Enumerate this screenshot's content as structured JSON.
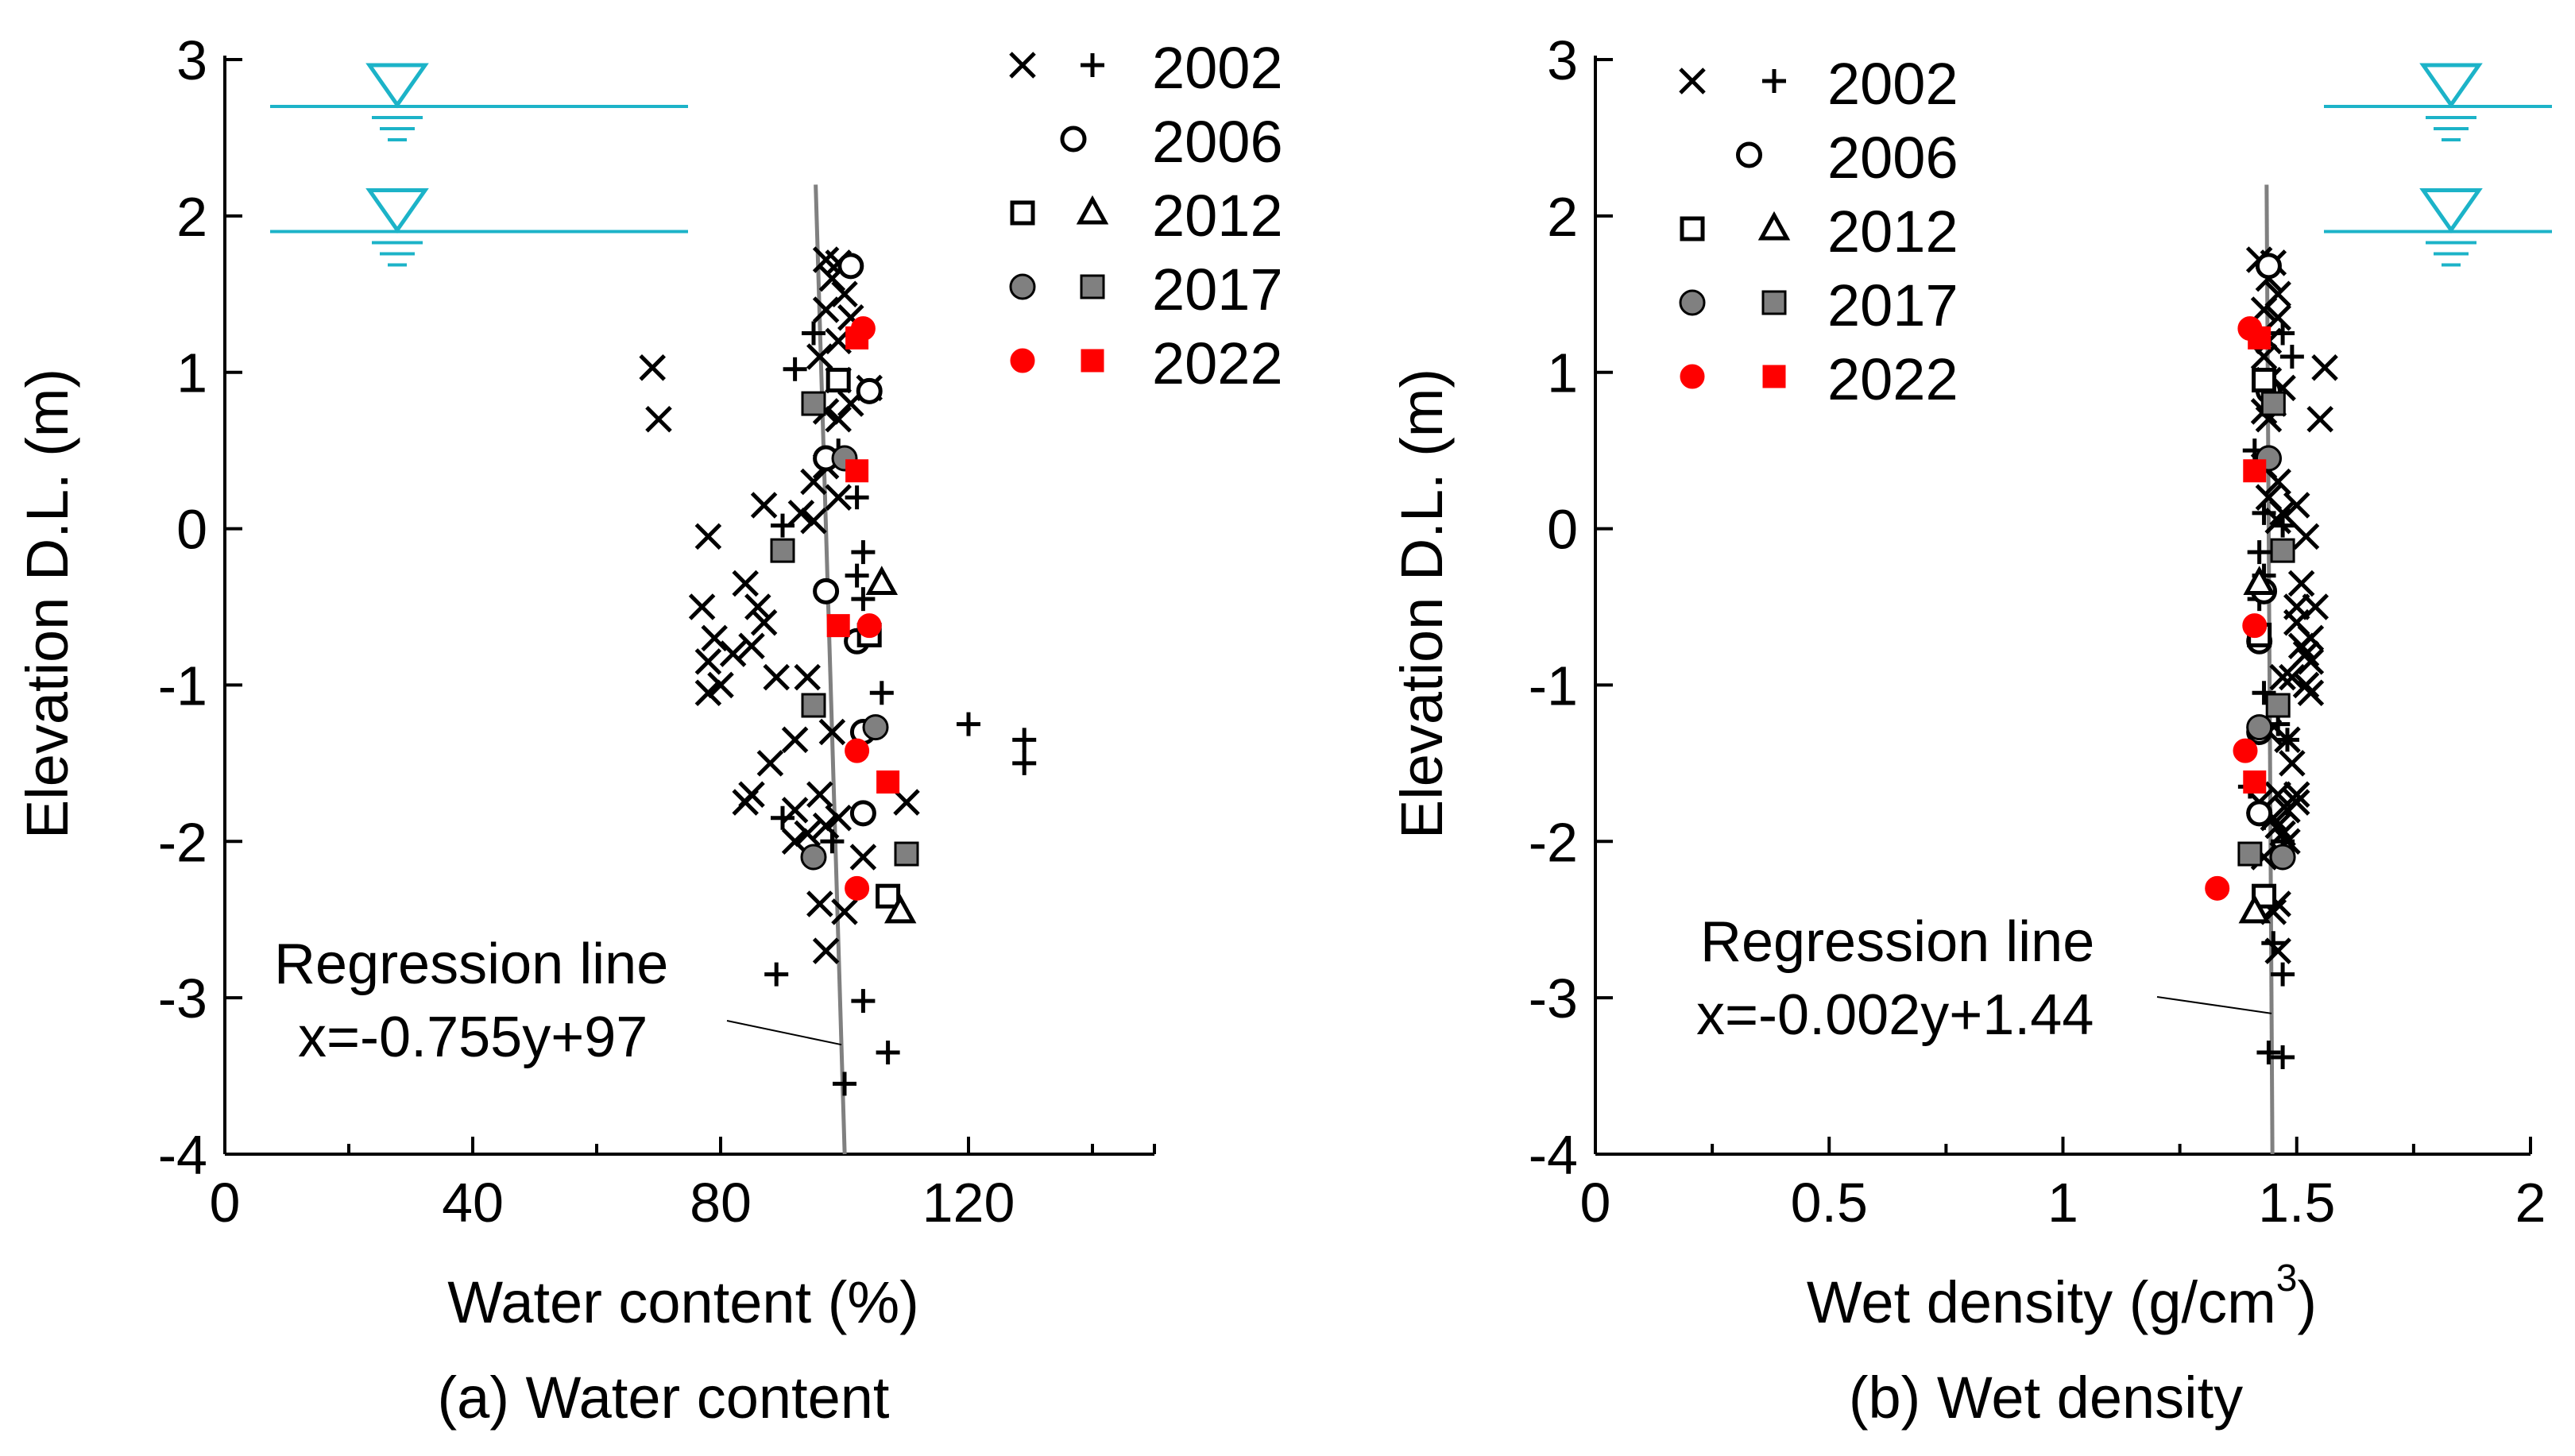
{
  "chart_data": [
    {
      "panel": "a",
      "type": "scatter",
      "caption": "(a) Water content",
      "xlabel": "Water content (%)",
      "ylabel": "Elevation D.L. (m)",
      "xlim": [
        0,
        150
      ],
      "ylim": [
        -4,
        3
      ],
      "xticks": [
        0,
        40,
        80,
        120
      ],
      "xticks_minor": [
        20,
        60,
        100,
        140
      ],
      "yticks": [
        3,
        2,
        1,
        0,
        -1,
        -2,
        -3,
        -4
      ],
      "water_levels": [
        2.7,
        1.9
      ],
      "regression": {
        "label": "Regression line",
        "equation": "x=-0.755y+97",
        "slope": -0.755,
        "intercept": 97,
        "y_range": [
          -4,
          2.2
        ]
      },
      "series": [
        {
          "name": "2002",
          "marker": "x",
          "color": "#000000",
          "points": [
            [
              69,
              1.03
            ],
            [
              70,
              0.7
            ],
            [
              97,
              1.72
            ],
            [
              99,
              1.7
            ],
            [
              98,
              1.6
            ],
            [
              100,
              1.5
            ],
            [
              97,
              1.4
            ],
            [
              101,
              1.35
            ],
            [
              99,
              1.2
            ],
            [
              96,
              1.1
            ],
            [
              99,
              0.95
            ],
            [
              104,
              0.9
            ],
            [
              101,
              0.8
            ],
            [
              97,
              0.75
            ],
            [
              99,
              0.7
            ],
            [
              97,
              0.4
            ],
            [
              95,
              0.3
            ],
            [
              99,
              0.2
            ],
            [
              87,
              0.15
            ],
            [
              93,
              0.1
            ],
            [
              95,
              0.05
            ],
            [
              78,
              -0.05
            ],
            [
              84,
              -0.35
            ],
            [
              86,
              -0.5
            ],
            [
              77,
              -0.5
            ],
            [
              87,
              -0.6
            ],
            [
              85,
              -0.75
            ],
            [
              79,
              -0.7
            ],
            [
              82,
              -0.8
            ],
            [
              78,
              -0.85
            ],
            [
              80,
              -1.0
            ],
            [
              78,
              -1.05
            ],
            [
              89,
              -0.95
            ],
            [
              94,
              -0.95
            ],
            [
              92,
              -1.35
            ],
            [
              88,
              -1.5
            ],
            [
              96,
              -1.7
            ],
            [
              85,
              -1.7
            ],
            [
              84,
              -1.75
            ],
            [
              110,
              -1.75
            ],
            [
              92,
              -1.8
            ],
            [
              97,
              -1.9
            ],
            [
              94,
              -1.95
            ],
            [
              92,
              -2.0
            ],
            [
              99,
              -1.85
            ],
            [
              103,
              -2.1
            ],
            [
              96,
              -2.4
            ],
            [
              100,
              -2.45
            ],
            [
              97,
              -2.7
            ],
            [
              98,
              -1.3
            ]
          ]
        },
        {
          "name": "2002",
          "marker": "+",
          "color": "#000000",
          "points": [
            [
              95,
              1.25
            ],
            [
              92,
              1.02
            ],
            [
              99,
              0.5
            ],
            [
              102,
              0.2
            ],
            [
              90,
              0.02
            ],
            [
              103,
              -0.15
            ],
            [
              102,
              -0.3
            ],
            [
              103,
              -0.45
            ],
            [
              106,
              -1.05
            ],
            [
              120,
              -1.25
            ],
            [
              129,
              -1.35
            ],
            [
              129,
              -1.5
            ],
            [
              90,
              -1.85
            ],
            [
              98,
              -2.0
            ],
            [
              89,
              -2.85
            ],
            [
              103,
              -3.02
            ],
            [
              107,
              -3.35
            ],
            [
              100,
              -3.55
            ]
          ]
        },
        {
          "name": "2006",
          "marker": "circle-open",
          "color": "#000000",
          "points": [
            [
              101,
              1.68
            ],
            [
              104,
              0.88
            ],
            [
              97,
              0.45
            ],
            [
              97,
              -0.4
            ],
            [
              102,
              -0.72
            ],
            [
              103,
              -1.3
            ],
            [
              103,
              -1.82
            ]
          ]
        },
        {
          "name": "2012",
          "marker": "square-open",
          "color": "#000000",
          "points": [
            [
              99,
              0.95
            ],
            [
              104,
              -0.68
            ],
            [
              107,
              -2.35
            ]
          ]
        },
        {
          "name": "2012",
          "marker": "triangle-open",
          "color": "#000000",
          "points": [
            [
              106,
              -0.35
            ],
            [
              109,
              -2.45
            ]
          ]
        },
        {
          "name": "2017",
          "marker": "circle-filled",
          "color": "#808080",
          "points": [
            [
              100,
              0.45
            ],
            [
              105,
              -1.27
            ],
            [
              95,
              -2.1
            ]
          ]
        },
        {
          "name": "2017",
          "marker": "square-filled",
          "color": "#808080",
          "points": [
            [
              95,
              0.8
            ],
            [
              90,
              -0.14
            ],
            [
              95,
              -1.13
            ],
            [
              110,
              -2.08
            ]
          ]
        },
        {
          "name": "2022",
          "marker": "circle-filled",
          "color": "#ff0000",
          "points": [
            [
              103,
              1.28
            ],
            [
              104,
              -0.62
            ],
            [
              102,
              -1.42
            ],
            [
              102,
              -2.3
            ]
          ]
        },
        {
          "name": "2022",
          "marker": "square-filled",
          "color": "#ff0000",
          "points": [
            [
              102,
              1.22
            ],
            [
              102,
              0.37
            ],
            [
              99,
              -0.62
            ],
            [
              107,
              -1.62
            ]
          ]
        }
      ],
      "legend": [
        {
          "label": "2002",
          "markers": [
            "x",
            "+"
          ],
          "colors": [
            "#000000",
            "#000000"
          ]
        },
        {
          "label": "2006",
          "markers": [
            "circle-open"
          ],
          "colors": [
            "#000000"
          ]
        },
        {
          "label": "2012",
          "markers": [
            "square-open",
            "triangle-open"
          ],
          "colors": [
            "#000000",
            "#000000"
          ]
        },
        {
          "label": "2017",
          "markers": [
            "circle-filled",
            "square-filled"
          ],
          "colors": [
            "#808080",
            "#808080"
          ]
        },
        {
          "label": "2022",
          "markers": [
            "circle-filled",
            "square-filled"
          ],
          "colors": [
            "#ff0000",
            "#ff0000"
          ]
        }
      ]
    },
    {
      "panel": "b",
      "type": "scatter",
      "caption": "(b) Wet density",
      "xlabel_main": "Wet density (g/cm",
      "xlabel_sup": "3",
      "xlabel_end": ")",
      "ylabel": "Elevation D.L. (m)",
      "xlim": [
        0,
        2
      ],
      "ylim": [
        -4,
        3
      ],
      "xticks": [
        "0",
        "0.5",
        "1",
        "1.5",
        "2"
      ],
      "xticks_minor": [
        0.25,
        0.75,
        1.25,
        1.75
      ],
      "yticks": [
        3,
        2,
        1,
        0,
        -1,
        -2,
        -3,
        -4
      ],
      "water_levels": [
        2.7,
        1.9
      ],
      "regression": {
        "label": "Regression line",
        "equation": "x=-0.002y+1.44",
        "slope": -0.002,
        "intercept": 1.44,
        "y_range": [
          -4,
          2.2
        ]
      },
      "series": [
        {
          "name": "2002",
          "marker": "x",
          "color": "#000000",
          "points": [
            [
              1.56,
              1.03
            ],
            [
              1.55,
              0.7
            ],
            [
              1.42,
              1.72
            ],
            [
              1.45,
              1.7
            ],
            [
              1.44,
              1.6
            ],
            [
              1.46,
              1.5
            ],
            [
              1.43,
              1.4
            ],
            [
              1.46,
              1.35
            ],
            [
              1.44,
              1.2
            ],
            [
              1.43,
              1.1
            ],
            [
              1.44,
              0.95
            ],
            [
              1.47,
              0.9
            ],
            [
              1.45,
              0.8
            ],
            [
              1.43,
              0.75
            ],
            [
              1.44,
              0.7
            ],
            [
              1.43,
              0.4
            ],
            [
              1.46,
              0.3
            ],
            [
              1.44,
              0.2
            ],
            [
              1.5,
              0.15
            ],
            [
              1.47,
              0.1
            ],
            [
              1.46,
              0.05
            ],
            [
              1.52,
              -0.05
            ],
            [
              1.51,
              -0.35
            ],
            [
              1.5,
              -0.5
            ],
            [
              1.54,
              -0.5
            ],
            [
              1.5,
              -0.6
            ],
            [
              1.51,
              -0.75
            ],
            [
              1.53,
              -0.7
            ],
            [
              1.52,
              -0.8
            ],
            [
              1.53,
              -0.85
            ],
            [
              1.52,
              -1.0
            ],
            [
              1.53,
              -1.05
            ],
            [
              1.49,
              -0.95
            ],
            [
              1.47,
              -0.95
            ],
            [
              1.48,
              -1.35
            ],
            [
              1.49,
              -1.5
            ],
            [
              1.46,
              -1.7
            ],
            [
              1.5,
              -1.7
            ],
            [
              1.5,
              -1.75
            ],
            [
              1.42,
              -1.75
            ],
            [
              1.48,
              -1.8
            ],
            [
              1.46,
              -1.9
            ],
            [
              1.47,
              -1.95
            ],
            [
              1.48,
              -2.0
            ],
            [
              1.45,
              -1.85
            ],
            [
              1.43,
              -2.1
            ],
            [
              1.46,
              -2.4
            ],
            [
              1.45,
              -2.45
            ],
            [
              1.46,
              -2.7
            ],
            [
              1.44,
              -1.3
            ]
          ]
        },
        {
          "name": "2002",
          "marker": "+",
          "color": "#000000",
          "points": [
            [
              1.47,
              1.25
            ],
            [
              1.49,
              1.1
            ],
            [
              1.41,
              0.5
            ],
            [
              1.43,
              0.1
            ],
            [
              1.47,
              0.02
            ],
            [
              1.42,
              -0.15
            ],
            [
              1.43,
              -0.3
            ],
            [
              1.42,
              -0.45
            ],
            [
              1.43,
              -1.05
            ],
            [
              1.46,
              -1.25
            ],
            [
              1.48,
              -1.35
            ],
            [
              1.4,
              -1.65
            ],
            [
              1.43,
              -1.85
            ],
            [
              1.47,
              -2.0
            ],
            [
              1.47,
              -2.85
            ],
            [
              1.45,
              -2.65
            ],
            [
              1.44,
              -3.35
            ],
            [
              1.47,
              -3.38
            ]
          ]
        },
        {
          "name": "2006",
          "marker": "circle-open",
          "color": "#000000",
          "points": [
            [
              1.44,
              1.68
            ],
            [
              1.44,
              0.88
            ],
            [
              1.44,
              0.45
            ],
            [
              1.43,
              -0.4
            ],
            [
              1.42,
              -0.72
            ],
            [
              1.42,
              -1.3
            ],
            [
              1.42,
              -1.82
            ]
          ]
        },
        {
          "name": "2012",
          "marker": "square-open",
          "color": "#000000",
          "points": [
            [
              1.43,
              0.95
            ],
            [
              1.42,
              -0.68
            ],
            [
              1.43,
              -2.35
            ]
          ]
        },
        {
          "name": "2012",
          "marker": "triangle-open",
          "color": "#000000",
          "points": [
            [
              1.42,
              -0.35
            ],
            [
              1.41,
              -2.45
            ]
          ]
        },
        {
          "name": "2017",
          "marker": "circle-filled",
          "color": "#808080",
          "points": [
            [
              1.44,
              0.45
            ],
            [
              1.42,
              -1.27
            ],
            [
              1.47,
              -2.1
            ]
          ]
        },
        {
          "name": "2017",
          "marker": "square-filled",
          "color": "#808080",
          "points": [
            [
              1.45,
              0.8
            ],
            [
              1.47,
              -0.14
            ],
            [
              1.46,
              -1.13
            ],
            [
              1.4,
              -2.08
            ]
          ]
        },
        {
          "name": "2022",
          "marker": "circle-filled",
          "color": "#ff0000",
          "points": [
            [
              1.4,
              1.28
            ],
            [
              1.41,
              -0.62
            ],
            [
              1.39,
              -1.42
            ],
            [
              1.33,
              -2.3
            ]
          ]
        },
        {
          "name": "2022",
          "marker": "square-filled",
          "color": "#ff0000",
          "points": [
            [
              1.42,
              1.22
            ],
            [
              1.41,
              0.37
            ],
            [
              1.41,
              -1.62
            ]
          ]
        }
      ],
      "legend": [
        {
          "label": "2002",
          "markers": [
            "x",
            "+"
          ],
          "colors": [
            "#000000",
            "#000000"
          ]
        },
        {
          "label": "2006",
          "markers": [
            "circle-open"
          ],
          "colors": [
            "#000000"
          ]
        },
        {
          "label": "2012",
          "markers": [
            "square-open",
            "triangle-open"
          ],
          "colors": [
            "#000000",
            "#000000"
          ]
        },
        {
          "label": "2017",
          "markers": [
            "circle-filled",
            "square-filled"
          ],
          "colors": [
            "#808080",
            "#808080"
          ]
        },
        {
          "label": "2022",
          "markers": [
            "circle-filled",
            "square-filled"
          ],
          "colors": [
            "#ff0000",
            "#ff0000"
          ]
        }
      ]
    }
  ],
  "colors": {
    "water_level": "#1cb3c8",
    "regression": "#808080",
    "axis": "#000000"
  }
}
